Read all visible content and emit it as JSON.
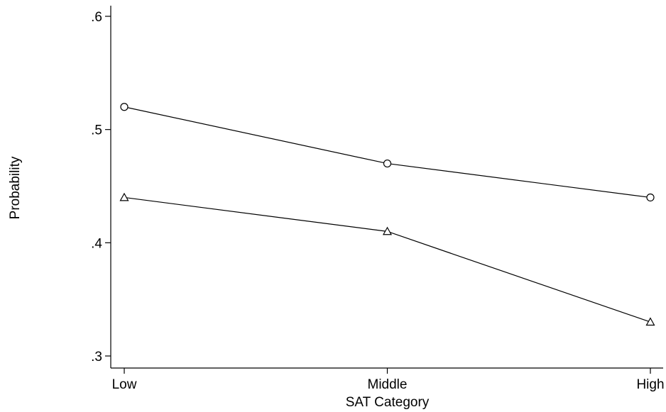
{
  "chart_data": {
    "type": "line",
    "title": "",
    "xlabel": "SAT Category",
    "ylabel": "Probability",
    "categories": [
      "Low",
      "Middle",
      "High"
    ],
    "ylim": [
      0.3,
      0.6
    ],
    "yticks": [
      {
        "value": 0.3,
        "label": ".3"
      },
      {
        "value": 0.4,
        "label": ".4"
      },
      {
        "value": 0.5,
        "label": ".5"
      },
      {
        "value": 0.6,
        "label": ".6"
      }
    ],
    "grid": false,
    "legend": "none",
    "series": [
      {
        "marker": "circle",
        "color": "#000000",
        "values": [
          0.52,
          0.47,
          0.44
        ]
      },
      {
        "marker": "triangle",
        "color": "#000000",
        "values": [
          0.44,
          0.41,
          0.33
        ]
      }
    ]
  }
}
